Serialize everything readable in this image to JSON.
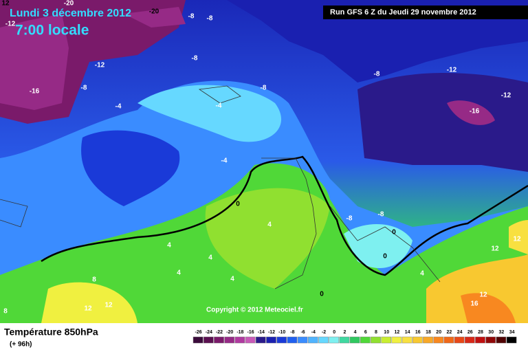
{
  "header": {
    "date": "Lundi 3 décembre 2012",
    "time": "7:00 locale",
    "run": "Run GFS 6 Z du Jeudi 29 novembre 2012"
  },
  "copyright": "Copyright © 2012 Meteociel.fr",
  "legend": {
    "title": "Température 850hPa",
    "subtitle": "(+ 96h)",
    "ticks": [
      -26,
      -24,
      -22,
      -20,
      -18,
      -16,
      -14,
      -12,
      -10,
      -8,
      -6,
      -4,
      -2,
      0,
      2,
      4,
      6,
      8,
      10,
      12,
      14,
      16,
      18,
      20,
      22,
      24,
      26,
      28,
      30,
      32,
      34
    ],
    "colors": [
      "#3a0a3a",
      "#5a1050",
      "#7a1a6a",
      "#962a86",
      "#b03aa0",
      "#c85ab8",
      "#2a1a8a",
      "#1a20b0",
      "#1a3ad8",
      "#2060f0",
      "#3a8cff",
      "#50b4ff",
      "#66d8ff",
      "#7ef0f0",
      "#40d8a0",
      "#30c860",
      "#50d838",
      "#90e030",
      "#c8ee30",
      "#f0f040",
      "#f8e040",
      "#f8c830",
      "#f8a828",
      "#f88820",
      "#f06818",
      "#e84818",
      "#d82818",
      "#c01010",
      "#900808",
      "#500404",
      "#000000"
    ]
  },
  "contour_labels": [
    "12",
    "-20",
    "-20",
    "-8",
    "-8",
    "-12",
    "-8",
    "-12",
    "-8",
    "-16",
    "-4",
    "-4",
    "-8",
    "-8",
    "-12",
    "-12",
    "-16",
    "-4",
    "0",
    "-8",
    "-8",
    "0",
    "0",
    "4",
    "4",
    "4",
    "4",
    "4",
    "4",
    "8",
    "12",
    "12",
    "0",
    "12",
    "12",
    "12",
    "16",
    "8"
  ]
}
